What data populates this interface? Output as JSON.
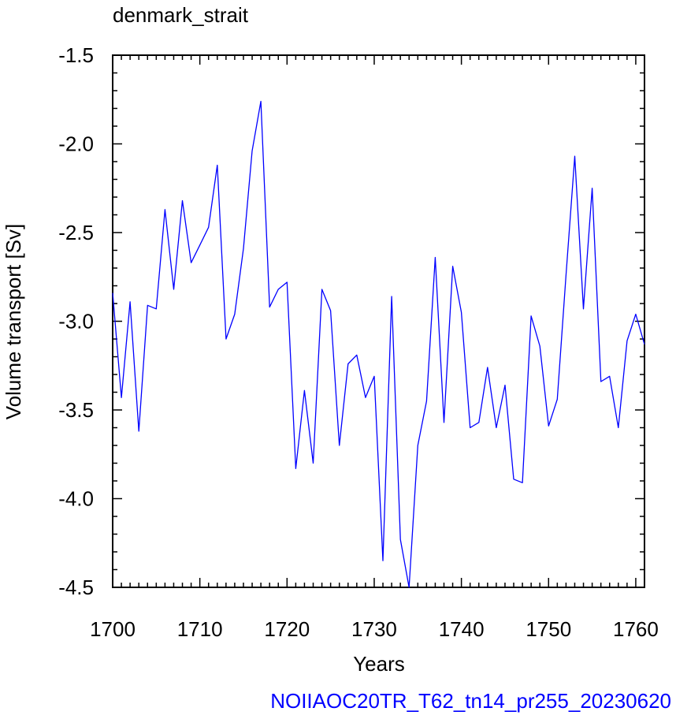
{
  "chart_data": {
    "type": "line",
    "title": "denmark_strait",
    "xlabel": "Years",
    "ylabel": "Volume transport [Sv]",
    "footer": "NOIIAOC20TR_T62_tn14_pr255_20230620",
    "xlim": [
      1700,
      1761
    ],
    "ylim": [
      -4.5,
      -1.5
    ],
    "x_ticks": [
      1700,
      1710,
      1720,
      1730,
      1740,
      1750,
      1760
    ],
    "x_tick_labels": [
      "1700",
      "1710",
      "1720",
      "1730",
      "1740",
      "1750",
      "1760"
    ],
    "y_ticks": [
      -1.5,
      -2.0,
      -2.5,
      -3.0,
      -3.5,
      -4.0,
      -4.5
    ],
    "y_tick_labels": [
      "-1.5",
      "-2.0",
      "-2.5",
      "-3.0",
      "-3.5",
      "-4.0",
      "-4.5"
    ],
    "grid": false,
    "series_color": "#0000ff",
    "footer_color": "#0000ff",
    "series": [
      {
        "x": [
          1700,
          1701,
          1702,
          1703,
          1704,
          1705,
          1706,
          1707,
          1708,
          1709,
          1710,
          1711,
          1712,
          1713,
          1714,
          1715,
          1716,
          1717,
          1718,
          1719,
          1720,
          1721,
          1722,
          1723,
          1724,
          1725,
          1726,
          1727,
          1728,
          1729,
          1730,
          1731,
          1732,
          1733,
          1734,
          1735,
          1736,
          1737,
          1738,
          1739,
          1740,
          1741,
          1742,
          1743,
          1744,
          1745,
          1746,
          1747,
          1748,
          1749,
          1750,
          1751,
          1752,
          1753,
          1754,
          1755,
          1756,
          1757,
          1758,
          1759,
          1760,
          1761
        ],
        "values": [
          -2.84,
          -3.43,
          -2.89,
          -3.62,
          -2.91,
          -2.93,
          -2.37,
          -2.82,
          -2.32,
          -2.67,
          -2.57,
          -2.47,
          -2.12,
          -3.1,
          -2.96,
          -2.59,
          -2.04,
          -1.76,
          -2.92,
          -2.82,
          -2.78,
          -3.83,
          -3.39,
          -3.8,
          -2.82,
          -2.94,
          -3.7,
          -3.24,
          -3.19,
          -3.43,
          -3.31,
          -4.35,
          -2.86,
          -4.23,
          -4.5,
          -3.7,
          -3.45,
          -2.64,
          -3.57,
          -2.69,
          -2.95,
          -3.6,
          -3.57,
          -3.26,
          -3.6,
          -3.36,
          -3.89,
          -3.91,
          -2.97,
          -3.14,
          -3.59,
          -3.44,
          -2.74,
          -2.07,
          -2.93,
          -2.25,
          -3.34,
          -3.31,
          -3.6,
          -3.11,
          -2.96,
          -3.13
        ]
      }
    ]
  }
}
